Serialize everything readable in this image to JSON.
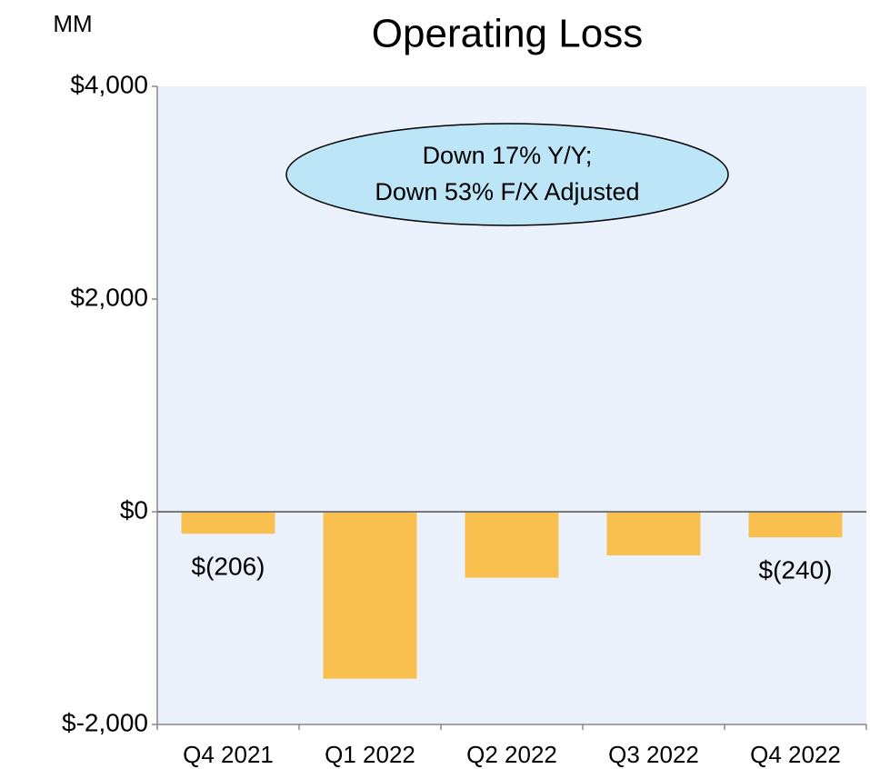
{
  "chart_data": {
    "type": "bar",
    "title": "Operating Loss",
    "unit_label": "MM",
    "categories": [
      "Q4 2021",
      "Q1 2022",
      "Q2 2022",
      "Q3 2022",
      "Q4 2022"
    ],
    "values": [
      -206,
      -1570,
      -620,
      -410,
      -240
    ],
    "value_labels": [
      "$(206)",
      null,
      null,
      null,
      "$(240)"
    ],
    "color": "#f9bf4f",
    "ylim": [
      -2000,
      4000
    ],
    "yticks": [
      {
        "value": -2000,
        "label": "$-2,000"
      },
      {
        "value": 0,
        "label": "$0"
      },
      {
        "value": 2000,
        "label": "$2,000"
      },
      {
        "value": 4000,
        "label": "$4,000"
      }
    ],
    "annotation": [
      "Down 17% Y/Y;",
      "Down 53% F/X Adjusted"
    ],
    "grid": false
  }
}
